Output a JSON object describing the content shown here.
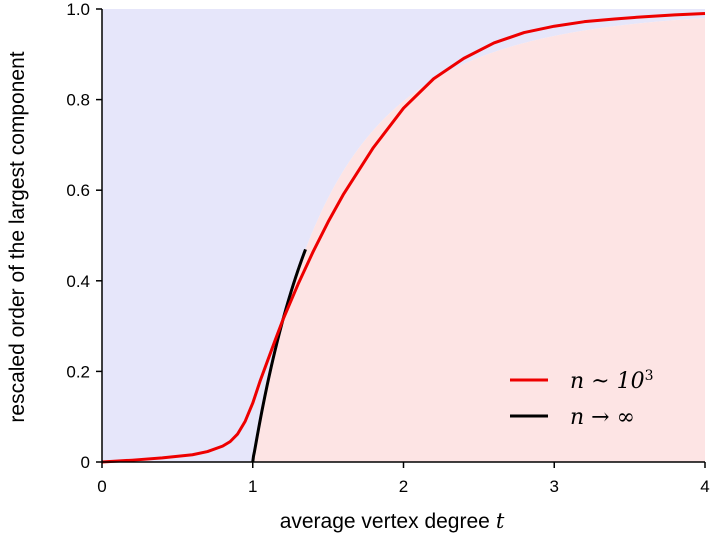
{
  "chart_data": {
    "type": "line",
    "title": "",
    "xlabel": "average vertex degree",
    "xlabel_var": "t",
    "ylabel": "rescaled order of the largest component",
    "xlim": [
      0,
      4
    ],
    "ylim": [
      0,
      1.0
    ],
    "x_ticks": [
      "0",
      "1",
      "2",
      "3",
      "4"
    ],
    "y_ticks": [
      "0",
      "0.2",
      "0.4",
      "0.6",
      "0.8",
      "1.0"
    ],
    "grid": false,
    "legend_position": "bottom-right",
    "shaded_regions": [
      {
        "region": "above n→∞ curve",
        "color": "#e6e6fa"
      },
      {
        "region": "below n→∞ curve",
        "color": "#fde4e4"
      }
    ],
    "series": [
      {
        "name": "n ~ 10^3",
        "legend_main": "n ~ 10",
        "legend_sup": "3",
        "color": "#ee0000",
        "x": [
          0,
          0.2,
          0.4,
          0.6,
          0.7,
          0.8,
          0.85,
          0.9,
          0.95,
          1.0,
          1.05,
          1.1,
          1.15,
          1.2,
          1.3,
          1.4,
          1.5,
          1.6,
          1.8,
          2.0,
          2.2,
          2.4,
          2.6,
          2.8,
          3.0,
          3.2,
          3.4,
          3.6,
          3.8,
          4.0
        ],
        "y": [
          0,
          0.004,
          0.009,
          0.016,
          0.023,
          0.035,
          0.045,
          0.062,
          0.09,
          0.13,
          0.18,
          0.225,
          0.27,
          0.314,
          0.392,
          0.464,
          0.53,
          0.59,
          0.694,
          0.781,
          0.846,
          0.891,
          0.925,
          0.948,
          0.962,
          0.972,
          0.978,
          0.983,
          0.987,
          0.99
        ]
      },
      {
        "name": "n → ∞",
        "legend_main": "n → ∞",
        "color": "#000000",
        "x": [
          1.0,
          1.02,
          1.05,
          1.1,
          1.15,
          1.2,
          1.3
        ],
        "y": [
          0,
          0.039,
          0.094,
          0.176,
          0.25,
          0.314,
          0.392
        ]
      }
    ]
  }
}
